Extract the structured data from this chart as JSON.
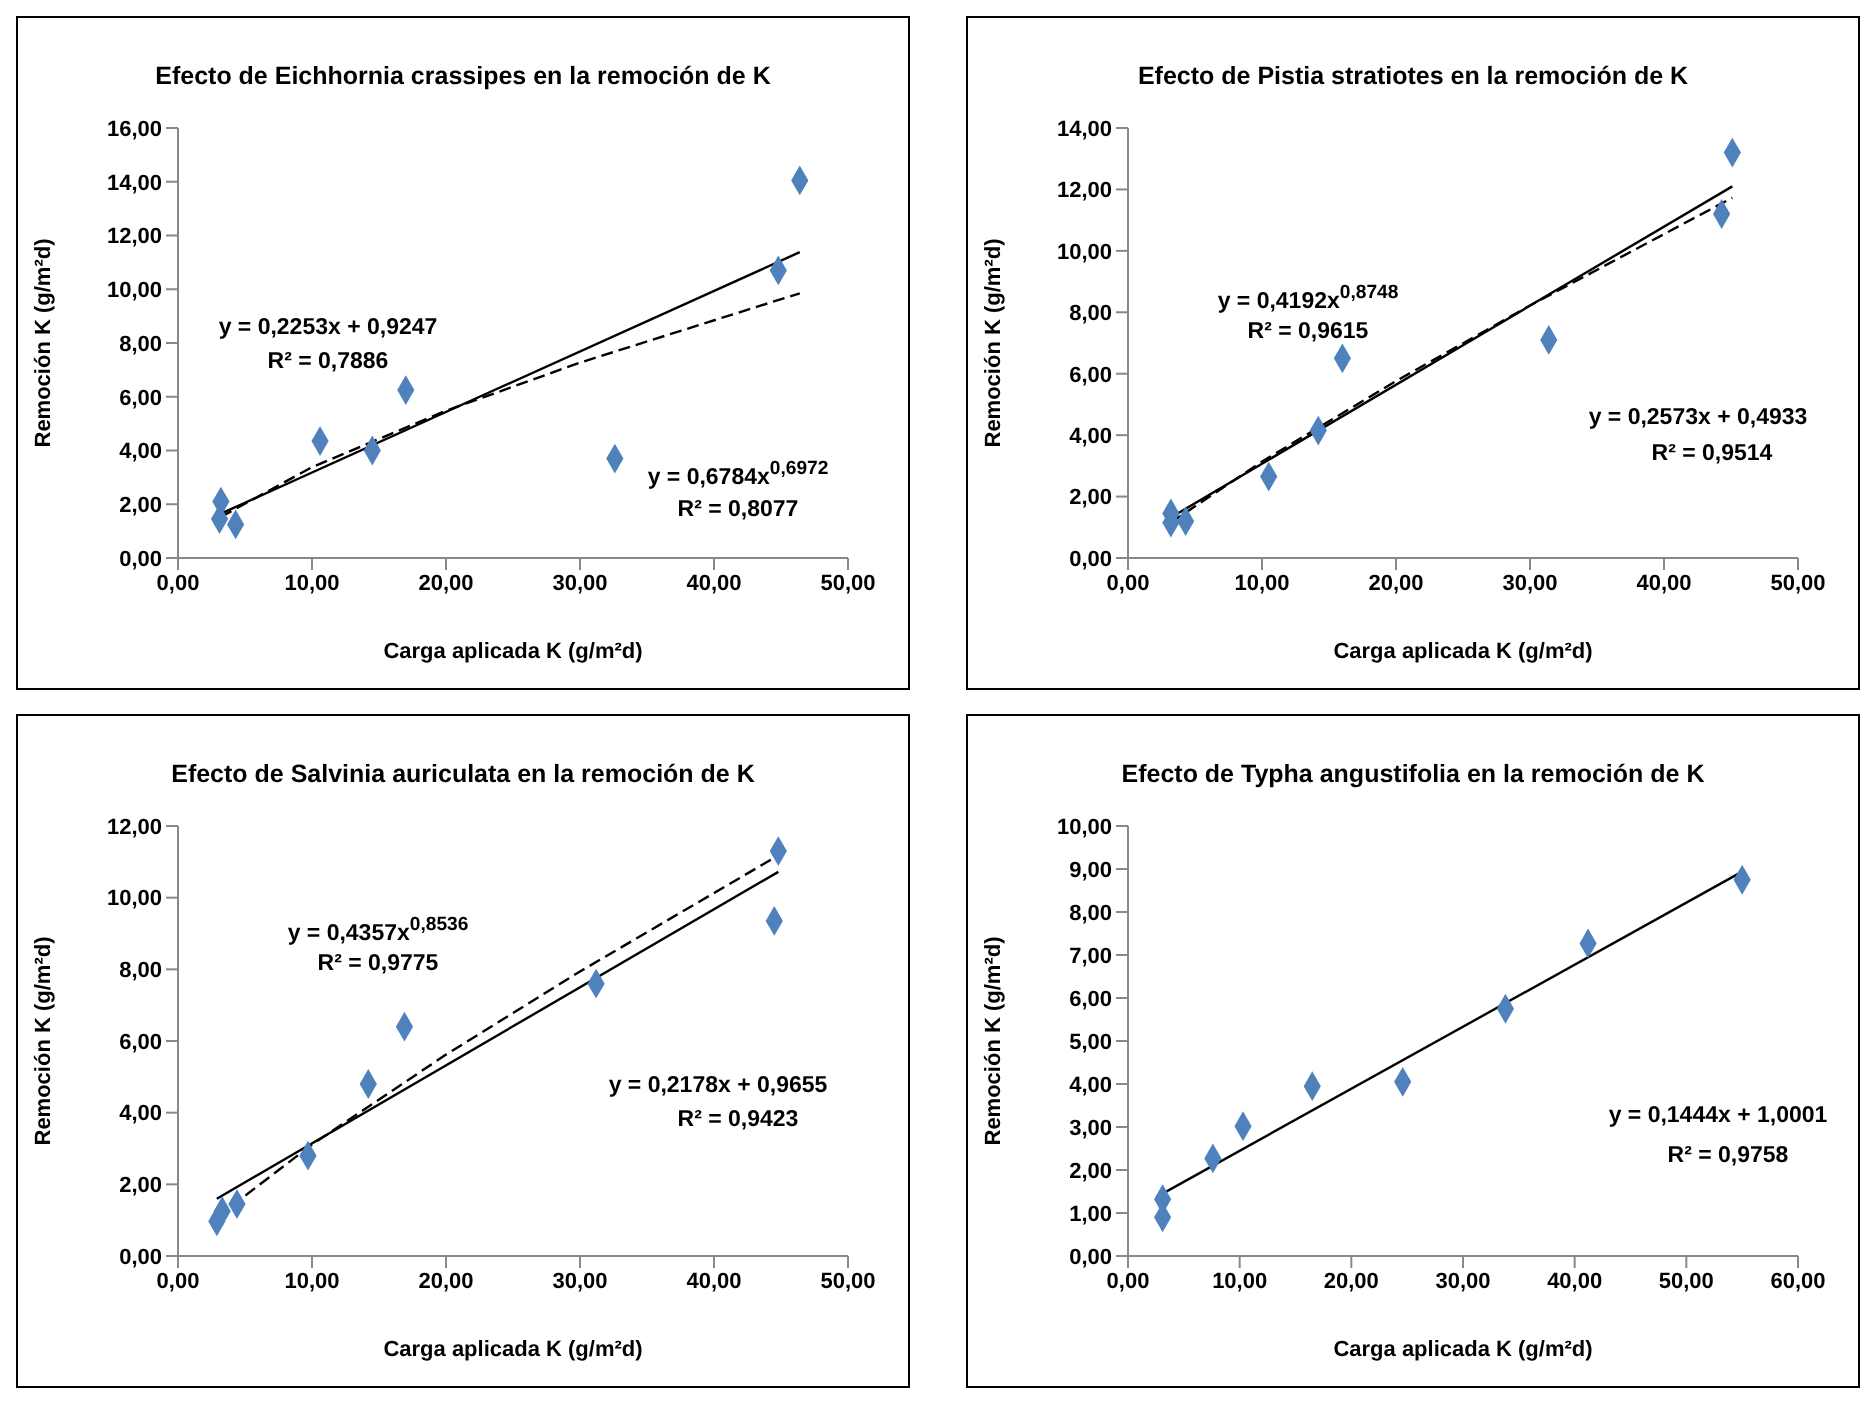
{
  "chart_data": [
    {
      "type": "scatter",
      "title": "Efecto de Eichhornia crassipes en la remoción de K",
      "xlabel": "Carga aplicada K (g/m²d)",
      "ylabel": "Remoción  K (g/m²d)",
      "xlim": [
        0,
        50
      ],
      "xticks": [
        {
          "value": 0,
          "label": "0,00"
        },
        {
          "value": 10,
          "label": "10,00"
        },
        {
          "value": 20,
          "label": "20,00"
        },
        {
          "value": 30,
          "label": "30,00"
        },
        {
          "value": 40,
          "label": "40,00"
        },
        {
          "value": 50,
          "label": "50,00"
        }
      ],
      "ylim": [
        0,
        16
      ],
      "yticks": [
        {
          "value": 0,
          "label": "0,00"
        },
        {
          "value": 2,
          "label": "2,00"
        },
        {
          "value": 4,
          "label": "4,00"
        },
        {
          "value": 6,
          "label": "6,00"
        },
        {
          "value": 8,
          "label": "8,00"
        },
        {
          "value": 10,
          "label": "10,00"
        },
        {
          "value": 12,
          "label": "12,00"
        },
        {
          "value": 14,
          "label": "14,00"
        },
        {
          "value": 16,
          "label": "16,00"
        }
      ],
      "annotations": [
        "y = 0,2253x  + 0,9247",
        "R² = 0,7886",
        "y = 0,6784x$^{0,6972}$",
        "R² = 0,8077"
      ],
      "series": [
        {
          "color": "#4f81bd",
          "marker": "diamond",
          "x": [
            3.2,
            3.1,
            4.3,
            10.6,
            14.5,
            17.0,
            32.6,
            44.8,
            46.4
          ],
          "values": [
            2.1,
            1.45,
            1.25,
            4.35,
            4.0,
            6.25,
            3.7,
            10.7,
            14.05
          ]
        },
        {
          "type": "line",
          "color": "#000000",
          "line_style": "solid",
          "x": [
            3.2,
            46.4
          ],
          "values": [
            1.65,
            11.38
          ]
        },
        {
          "type": "line",
          "color": "#000000",
          "line_style": "dashed",
          "x": [
            3.2,
            10,
            20,
            30,
            46.4
          ],
          "values": [
            1.53,
            3.38,
            5.48,
            7.27,
            9.85
          ]
        }
      ]
    },
    {
      "type": "scatter",
      "title": "Efecto de Pistia stratiotes en la remoción de K",
      "xlabel": "Carga aplicada K (g/m²d)",
      "ylabel": "Remoción  K (g/m²d)",
      "xlim": [
        0,
        50
      ],
      "xticks": [
        {
          "value": 0,
          "label": "0,00"
        },
        {
          "value": 10,
          "label": "10,00"
        },
        {
          "value": 20,
          "label": "20,00"
        },
        {
          "value": 30,
          "label": "30,00"
        },
        {
          "value": 40,
          "label": "40,00"
        },
        {
          "value": 50,
          "label": "50,00"
        }
      ],
      "ylim": [
        0,
        14
      ],
      "yticks": [
        {
          "value": 0,
          "label": "0,00"
        },
        {
          "value": 2,
          "label": "2,00"
        },
        {
          "value": 4,
          "label": "4,00"
        },
        {
          "value": 6,
          "label": "6,00"
        },
        {
          "value": 8,
          "label": "8,00"
        },
        {
          "value": 10,
          "label": "10,00"
        },
        {
          "value": 12,
          "label": "12,00"
        },
        {
          "value": 14,
          "label": "14,00"
        }
      ],
      "annotations": [
        "y = 0,4192x$^{0,8748}$",
        "R² = 0,9615",
        "y = 0,2573x  + 0,4933",
        "R² = 0,9514"
      ],
      "series": [
        {
          "color": "#4f81bd",
          "marker": "diamond",
          "x": [
            3.2,
            3.2,
            4.3,
            10.5,
            14.2,
            16.0,
            31.4,
            44.3,
            45.1
          ],
          "values": [
            1.45,
            1.15,
            1.2,
            2.65,
            4.15,
            6.5,
            7.1,
            11.2,
            13.2
          ]
        },
        {
          "type": "line",
          "color": "#000000",
          "line_style": "solid",
          "x": [
            3.2,
            45.1
          ],
          "values": [
            1.32,
            12.1
          ]
        },
        {
          "type": "line",
          "color": "#000000",
          "line_style": "dashed",
          "x": [
            3.2,
            10,
            20,
            30,
            45.1
          ],
          "values": [
            1.16,
            3.14,
            5.76,
            8.22,
            11.73
          ]
        }
      ]
    },
    {
      "type": "scatter",
      "title": "Efecto de Salvinia auriculata en la remoción de K",
      "xlabel": "Carga aplicada K (g/m²d)",
      "ylabel": "Remoción  K (g/m²d)",
      "xlim": [
        0,
        50
      ],
      "xticks": [
        {
          "value": 0,
          "label": "0,00"
        },
        {
          "value": 10,
          "label": "10,00"
        },
        {
          "value": 20,
          "label": "20,00"
        },
        {
          "value": 30,
          "label": "30,00"
        },
        {
          "value": 40,
          "label": "40,00"
        },
        {
          "value": 50,
          "label": "50,00"
        }
      ],
      "ylim": [
        0,
        12
      ],
      "yticks": [
        {
          "value": 0,
          "label": "0,00"
        },
        {
          "value": 2,
          "label": "2,00"
        },
        {
          "value": 4,
          "label": "4,00"
        },
        {
          "value": 6,
          "label": "6,00"
        },
        {
          "value": 8,
          "label": "8,00"
        },
        {
          "value": 10,
          "label": "10,00"
        },
        {
          "value": 12,
          "label": "12,00"
        }
      ],
      "annotations": [
        "y = 0,4357x$^{0,8536}$",
        "R² = 0,9775",
        "y = 0,2178x  + 0,9655",
        "R² = 0,9423"
      ],
      "series": [
        {
          "color": "#4f81bd",
          "marker": "diamond",
          "x": [
            2.9,
            3.3,
            4.4,
            9.7,
            14.2,
            16.9,
            31.2,
            44.5,
            44.8
          ],
          "values": [
            0.97,
            1.25,
            1.45,
            2.8,
            4.8,
            6.4,
            7.6,
            9.35,
            11.3
          ]
        },
        {
          "type": "line",
          "color": "#000000",
          "line_style": "solid",
          "x": [
            2.9,
            44.8
          ],
          "values": [
            1.6,
            10.72
          ]
        },
        {
          "type": "line",
          "color": "#000000",
          "line_style": "dashed",
          "x": [
            2.9,
            10,
            20,
            30,
            44.8
          ],
          "values": [
            1.08,
            3.11,
            5.62,
            7.94,
            11.18
          ]
        }
      ]
    },
    {
      "type": "scatter",
      "title": "Efecto de Typha angustifolia en la remoción de K",
      "xlabel": "Carga aplicada K (g/m²d)",
      "ylabel": "Remoción K (g/m²d)",
      "xlim": [
        0,
        60
      ],
      "xticks": [
        {
          "value": 0,
          "label": "0,00"
        },
        {
          "value": 10,
          "label": "10,00"
        },
        {
          "value": 20,
          "label": "20,00"
        },
        {
          "value": 30,
          "label": "30,00"
        },
        {
          "value": 40,
          "label": "40,00"
        },
        {
          "value": 50,
          "label": "50,00"
        },
        {
          "value": 60,
          "label": "60,00"
        }
      ],
      "ylim": [
        0,
        10
      ],
      "yticks": [
        {
          "value": 0,
          "label": "0,00"
        },
        {
          "value": 1,
          "label": "1,00"
        },
        {
          "value": 2,
          "label": "2,00"
        },
        {
          "value": 3,
          "label": "3,00"
        },
        {
          "value": 4,
          "label": "4,00"
        },
        {
          "value": 5,
          "label": "5,00"
        },
        {
          "value": 6,
          "label": "6,00"
        },
        {
          "value": 7,
          "label": "7,00"
        },
        {
          "value": 8,
          "label": "8,00"
        },
        {
          "value": 9,
          "label": "9,00"
        },
        {
          "value": 10,
          "label": "10,00"
        }
      ],
      "annotations": [
        "y = 0,1444x  + 1,0001",
        "R² = 0,9758"
      ],
      "series": [
        {
          "color": "#4f81bd",
          "marker": "diamond",
          "x": [
            3.1,
            3.1,
            7.6,
            10.3,
            16.5,
            24.6,
            33.8,
            41.2,
            55.0
          ],
          "values": [
            1.32,
            0.9,
            2.27,
            3.02,
            3.95,
            4.05,
            5.75,
            7.27,
            8.75
          ]
        },
        {
          "type": "line",
          "color": "#000000",
          "line_style": "solid",
          "x": [
            3.1,
            55.0
          ],
          "values": [
            1.45,
            8.94
          ]
        }
      ]
    }
  ]
}
